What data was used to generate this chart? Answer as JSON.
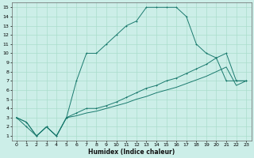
{
  "xlabel": "Humidex (Indice chaleur)",
  "bg_color": "#cceee8",
  "grid_color": "#aaddcc",
  "line_color": "#1a7a6e",
  "xlim": [
    -0.5,
    23.5
  ],
  "ylim": [
    0.5,
    15.5
  ],
  "xticks": [
    0,
    1,
    2,
    3,
    4,
    5,
    6,
    7,
    8,
    9,
    10,
    11,
    12,
    13,
    14,
    15,
    16,
    17,
    18,
    19,
    20,
    21,
    22,
    23
  ],
  "yticks": [
    1,
    2,
    3,
    4,
    5,
    6,
    7,
    8,
    9,
    10,
    11,
    12,
    13,
    14,
    15
  ],
  "curve1_x": [
    0,
    1,
    2,
    3,
    4,
    5,
    6,
    7,
    8,
    9,
    10,
    11,
    12,
    13,
    14,
    15,
    16,
    17,
    18,
    19,
    20,
    21,
    22,
    23
  ],
  "curve1_y": [
    3,
    2,
    1,
    2,
    1,
    3,
    7,
    10,
    10,
    11,
    12,
    13,
    13.5,
    15,
    15,
    15,
    15,
    14,
    11,
    10,
    9.5,
    7,
    7,
    7
  ],
  "curve2_x": [
    0,
    1,
    2,
    3,
    4,
    5,
    6,
    7,
    8,
    9,
    10,
    11,
    12,
    13,
    14,
    15,
    16,
    17,
    18,
    19,
    20,
    21,
    22,
    23
  ],
  "curve2_y": [
    3,
    2.5,
    1,
    2,
    1,
    3,
    3.5,
    4,
    4,
    4.3,
    4.7,
    5.2,
    5.7,
    6.2,
    6.5,
    7,
    7.3,
    7.8,
    8.3,
    8.8,
    9.5,
    10,
    7,
    7
  ],
  "curve3_x": [
    0,
    1,
    2,
    3,
    4,
    5,
    6,
    7,
    8,
    9,
    10,
    11,
    12,
    13,
    14,
    15,
    16,
    17,
    18,
    19,
    20,
    21,
    22,
    23
  ],
  "curve3_y": [
    3,
    2.5,
    1,
    2,
    1,
    3,
    3.2,
    3.5,
    3.7,
    4.0,
    4.3,
    4.6,
    5.0,
    5.3,
    5.7,
    6.0,
    6.3,
    6.7,
    7.1,
    7.5,
    8.0,
    8.5,
    6.5,
    7
  ]
}
